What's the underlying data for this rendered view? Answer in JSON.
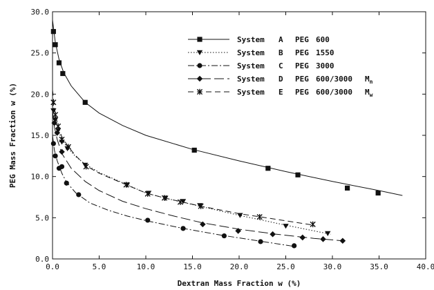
{
  "chart_data": {
    "type": "line",
    "title": "",
    "xlabel": "Dextran Mass Fraction w (%)",
    "ylabel": "PEG Mass Fraction w (%)",
    "xlim": [
      0,
      40
    ],
    "ylim": [
      0,
      30
    ],
    "xticks": [
      "0.0",
      "5.0",
      "10.0",
      "15.0",
      "20.0",
      "25.0",
      "30.0",
      "35.0",
      "40.0"
    ],
    "yticks": [
      "0.0",
      "5.0",
      "10.0",
      "15.0",
      "20.0",
      "25.0",
      "30.0"
    ],
    "grid": false,
    "legend_position": "top-right",
    "series": [
      {
        "name": "System A PEG 600",
        "marker": "square",
        "dash": "solid",
        "points": [
          [
            0.1,
            27.6
          ],
          [
            0.3,
            26.0
          ],
          [
            0.7,
            23.8
          ],
          [
            1.1,
            22.5
          ],
          [
            3.5,
            19.0
          ],
          [
            15.2,
            13.2
          ],
          [
            23.1,
            11.0
          ],
          [
            26.3,
            10.2
          ],
          [
            31.6,
            8.6
          ],
          [
            34.9,
            8.0
          ]
        ],
        "curve": [
          [
            0.0,
            29.0
          ],
          [
            0.3,
            26.3
          ],
          [
            0.7,
            24.2
          ],
          [
            1.2,
            22.6
          ],
          [
            2.0,
            21.0
          ],
          [
            3.5,
            19.0
          ],
          [
            5.0,
            17.7
          ],
          [
            7.5,
            16.2
          ],
          [
            10.0,
            15.0
          ],
          [
            15.0,
            13.3
          ],
          [
            20.0,
            11.9
          ],
          [
            25.0,
            10.6
          ],
          [
            30.0,
            9.4
          ],
          [
            35.0,
            8.3
          ],
          [
            37.5,
            7.7
          ]
        ]
      },
      {
        "name": "System B PEG 1550",
        "marker": "triangle-down",
        "dash": "dotted",
        "points": [
          [
            0.1,
            18.0
          ],
          [
            0.3,
            16.9
          ],
          [
            0.6,
            15.6
          ],
          [
            1.0,
            14.2
          ],
          [
            1.6,
            13.4
          ],
          [
            3.5,
            11.4
          ],
          [
            8.0,
            9.0
          ],
          [
            10.3,
            8.0
          ],
          [
            12.1,
            7.4
          ],
          [
            14.0,
            7.0
          ],
          [
            15.8,
            6.5
          ],
          [
            20.1,
            5.3
          ],
          [
            25.0,
            4.0
          ],
          [
            29.5,
            3.1
          ]
        ],
        "curve": [
          [
            0.0,
            19.0
          ],
          [
            0.3,
            16.9
          ],
          [
            0.6,
            15.6
          ],
          [
            1.0,
            14.5
          ],
          [
            1.6,
            13.5
          ],
          [
            2.5,
            12.4
          ],
          [
            3.5,
            11.5
          ],
          [
            5.0,
            10.5
          ],
          [
            8.0,
            9.0
          ],
          [
            10.0,
            8.0
          ],
          [
            12.0,
            7.4
          ],
          [
            15.0,
            6.6
          ],
          [
            20.0,
            5.3
          ],
          [
            25.0,
            4.1
          ],
          [
            29.8,
            3.0
          ]
        ]
      },
      {
        "name": "System C PEG 3000",
        "marker": "circle",
        "dash": "dash-dot",
        "points": [
          [
            0.1,
            14.0
          ],
          [
            0.3,
            12.5
          ],
          [
            0.7,
            11.0
          ],
          [
            1.0,
            11.2
          ],
          [
            1.5,
            9.2
          ],
          [
            2.8,
            7.8
          ],
          [
            10.2,
            4.7
          ],
          [
            14.0,
            3.7
          ],
          [
            18.4,
            2.8
          ],
          [
            22.3,
            2.1
          ],
          [
            25.9,
            1.6
          ]
        ],
        "curve": [
          [
            0.0,
            15.0
          ],
          [
            0.2,
            13.2
          ],
          [
            0.5,
            11.9
          ],
          [
            1.0,
            10.4
          ],
          [
            1.5,
            9.3
          ],
          [
            2.5,
            8.0
          ],
          [
            4.0,
            6.8
          ],
          [
            6.0,
            5.9
          ],
          [
            8.0,
            5.2
          ],
          [
            10.2,
            4.6
          ],
          [
            14.0,
            3.7
          ],
          [
            18.0,
            2.9
          ],
          [
            22.0,
            2.2
          ],
          [
            26.0,
            1.5
          ]
        ]
      },
      {
        "name": "System D PEG 600/3000 Mn",
        "marker": "diamond",
        "dash": "long-dash",
        "points": [
          [
            0.2,
            16.5
          ],
          [
            0.5,
            15.3
          ],
          [
            1.0,
            13.0
          ],
          [
            16.1,
            4.2
          ],
          [
            19.9,
            3.4
          ],
          [
            23.6,
            3.0
          ],
          [
            26.8,
            2.6
          ],
          [
            29.0,
            2.4
          ],
          [
            31.1,
            2.2
          ]
        ],
        "curve": [
          [
            0.0,
            18.0
          ],
          [
            0.2,
            16.0
          ],
          [
            0.5,
            14.5
          ],
          [
            1.0,
            12.8
          ],
          [
            2.0,
            11.0
          ],
          [
            3.5,
            9.4
          ],
          [
            5.0,
            8.3
          ],
          [
            7.5,
            7.0
          ],
          [
            10.0,
            6.1
          ],
          [
            13.0,
            5.2
          ],
          [
            16.0,
            4.4
          ],
          [
            20.0,
            3.6
          ],
          [
            24.0,
            3.0
          ],
          [
            28.0,
            2.5
          ],
          [
            31.1,
            2.2
          ]
        ]
      },
      {
        "name": "System E PEG 600/3000 Mw",
        "marker": "x",
        "dash": "dashed",
        "points": [
          [
            0.1,
            19.0
          ],
          [
            0.3,
            17.5
          ],
          [
            0.6,
            16.1
          ],
          [
            1.0,
            14.5
          ],
          [
            1.7,
            13.6
          ],
          [
            3.6,
            11.2
          ],
          [
            7.9,
            9.0
          ],
          [
            10.2,
            7.9
          ],
          [
            12.0,
            7.4
          ],
          [
            13.7,
            6.9
          ],
          [
            15.9,
            6.4
          ],
          [
            22.2,
            5.1
          ],
          [
            27.9,
            4.2
          ]
        ],
        "curve": [
          [
            0.0,
            20.5
          ],
          [
            0.3,
            17.6
          ],
          [
            0.6,
            16.1
          ],
          [
            1.0,
            14.8
          ],
          [
            1.7,
            13.6
          ],
          [
            2.5,
            12.5
          ],
          [
            3.6,
            11.3
          ],
          [
            5.0,
            10.4
          ],
          [
            7.9,
            9.0
          ],
          [
            10.0,
            8.0
          ],
          [
            12.0,
            7.4
          ],
          [
            15.9,
            6.4
          ],
          [
            20.0,
            5.5
          ],
          [
            24.0,
            4.8
          ],
          [
            28.0,
            4.1
          ]
        ]
      }
    ],
    "legend_entries": [
      {
        "system": "System",
        "letter": "A",
        "polymer": "PEG",
        "weight": "600",
        "sub": ""
      },
      {
        "system": "System",
        "letter": "B",
        "polymer": "PEG",
        "weight": "1550",
        "sub": ""
      },
      {
        "system": "System",
        "letter": "C",
        "polymer": "PEG",
        "weight": "3000",
        "sub": ""
      },
      {
        "system": "System",
        "letter": "D",
        "polymer": "PEG",
        "weight": "600/3000",
        "sub": "M",
        "subscript": "n"
      },
      {
        "system": "System",
        "letter": "E",
        "polymer": "PEG",
        "weight": "600/3000",
        "sub": "M",
        "subscript": "w"
      }
    ]
  }
}
